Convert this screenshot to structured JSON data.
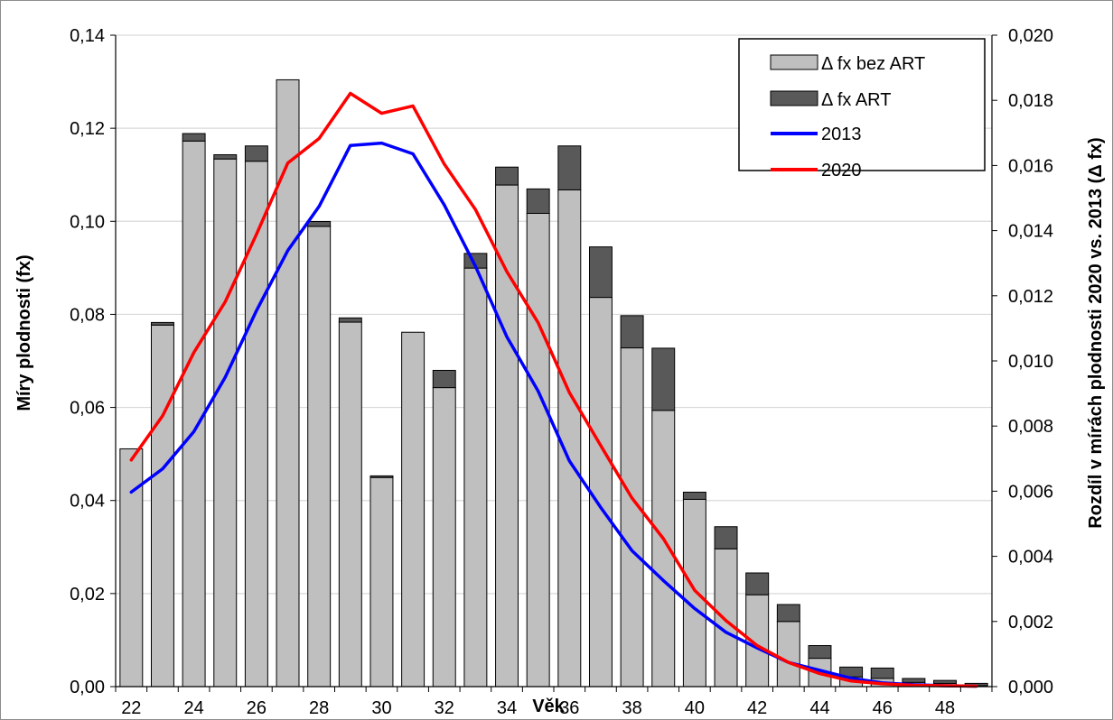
{
  "chart_data": {
    "type": "bar",
    "xlabel": "Věk",
    "ylabel_left": "Míry plodnosti (fx)",
    "ylabel_right": "Rozdíl v mírách plodnosti 2020 vs. 2013 (Δ fx)",
    "x": [
      22,
      23,
      24,
      25,
      26,
      27,
      28,
      29,
      30,
      31,
      32,
      33,
      34,
      35,
      36,
      37,
      38,
      39,
      40,
      41,
      42,
      43,
      44,
      45,
      46,
      47,
      48,
      49
    ],
    "x_tick_labels": [
      "22",
      "24",
      "26",
      "28",
      "30",
      "32",
      "34",
      "36",
      "38",
      "40",
      "42",
      "44",
      "46",
      "48"
    ],
    "y_left_ticks": [
      "0,00",
      "0,02",
      "0,04",
      "0,06",
      "0,08",
      "0,10",
      "0,12",
      "0,14"
    ],
    "y_left_range": [
      0,
      0.14
    ],
    "y_right_ticks": [
      "0,000",
      "0,002",
      "0,004",
      "0,006",
      "0,008",
      "0,010",
      "0,012",
      "0,014",
      "0,016",
      "0,018",
      "0,020"
    ],
    "y_right_range": [
      0,
      0.02
    ],
    "grid": true,
    "legend_position": "top-right",
    "bar_axis": "right",
    "line_axis": "left",
    "bar_series": [
      {
        "name": "Δ fx bez ART",
        "color": "#bfbfbf",
        "values": [
          0.0073,
          0.0111,
          0.01675,
          0.0162,
          0.01613,
          0.01863,
          0.01413,
          0.01119,
          0.00642,
          0.01088,
          0.00918,
          0.01285,
          0.0154,
          0.01453,
          0.01525,
          0.01195,
          0.0104,
          0.00848,
          0.00575,
          0.00423,
          0.00282,
          0.002,
          0.00087,
          0.0003,
          0.00025,
          0.00013,
          0.0001,
          3e-05
        ]
      },
      {
        "name": "Δ fx ART",
        "color": "#595959",
        "values": [
          0,
          8e-05,
          0.00023,
          0.00013,
          0.00047,
          0,
          0.00015,
          0.00013,
          5e-05,
          0,
          0.00053,
          0.00045,
          0.00055,
          0.00075,
          0.00135,
          0.00155,
          0.00099,
          0.00191,
          0.00022,
          0.00068,
          0.00067,
          0.00052,
          0.00039,
          0.0003,
          0.00032,
          0.00012,
          9e-05,
          7e-05
        ]
      }
    ],
    "line_series": [
      {
        "name": "2013",
        "color": "#0000ff",
        "values": [
          0.0418,
          0.0468,
          0.0548,
          0.0665,
          0.0808,
          0.0937,
          0.1032,
          0.1163,
          0.1168,
          0.1145,
          0.1035,
          0.0903,
          0.0752,
          0.0635,
          0.0485,
          0.0385,
          0.0292,
          0.0228,
          0.0168,
          0.0117,
          0.0083,
          0.0052,
          0.0035,
          0.0018,
          0.0008,
          0.0004,
          0.0002,
          0.0001
        ]
      },
      {
        "name": "2020",
        "color": "#ff0000",
        "values": [
          0.0487,
          0.0582,
          0.0718,
          0.0827,
          0.0972,
          0.1125,
          0.1178,
          0.1275,
          0.1232,
          0.1248,
          0.1123,
          0.1025,
          0.0892,
          0.0782,
          0.0632,
          0.0518,
          0.0405,
          0.0318,
          0.0207,
          0.0142,
          0.0088,
          0.0052,
          0.0028,
          0.0012,
          0.0006,
          0.0003,
          0.0002,
          0.0001
        ]
      }
    ]
  }
}
